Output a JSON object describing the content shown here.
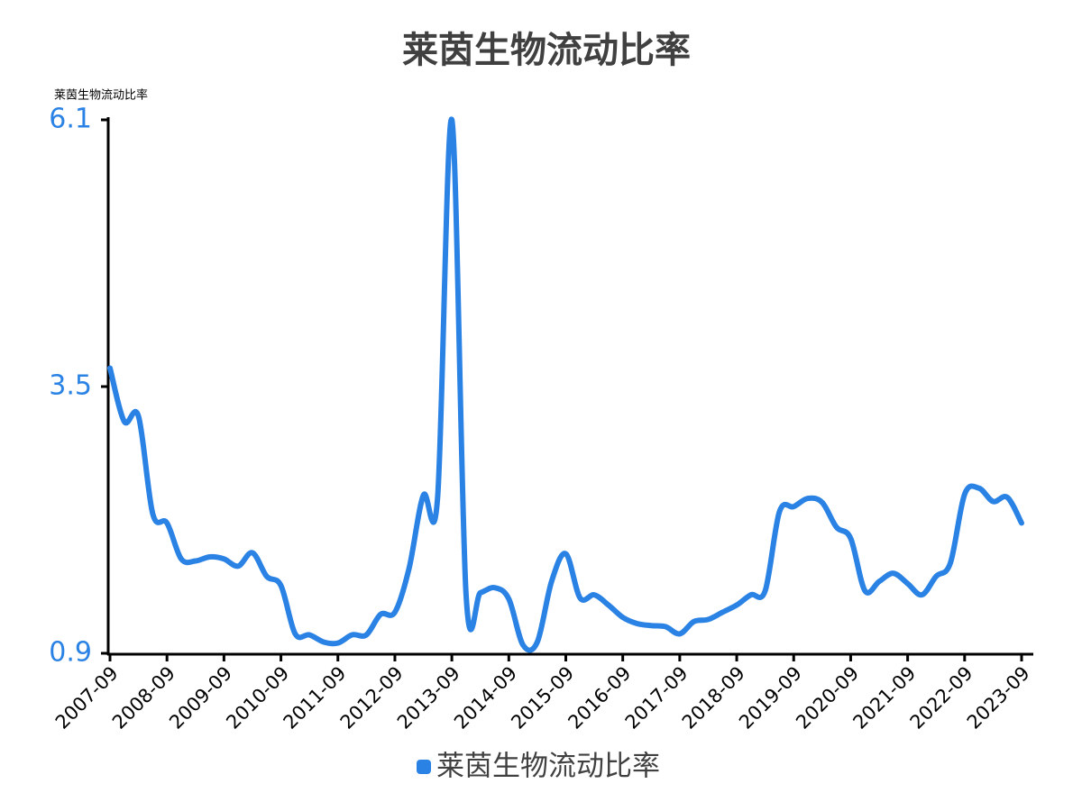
{
  "chart_data": {
    "type": "line",
    "title": "莱茵生物流动比率",
    "y_label": "莱茵生物流动比率",
    "categories": [
      "2007-09",
      null,
      null,
      null,
      "2008-09",
      null,
      null,
      null,
      "2009-09",
      null,
      null,
      null,
      "2010-09",
      null,
      null,
      null,
      "2011-09",
      null,
      null,
      null,
      "2012-09",
      null,
      null,
      null,
      "2013-09",
      null,
      null,
      null,
      "2014-09",
      null,
      null,
      null,
      "2015-09",
      null,
      null,
      null,
      "2016-09",
      null,
      null,
      null,
      "2017-09",
      null,
      null,
      null,
      "2018-09",
      null,
      null,
      null,
      "2019-09",
      null,
      null,
      null,
      "2020-09",
      null,
      null,
      null,
      "2021-09",
      null,
      null,
      null,
      "2022-09",
      null,
      null,
      null,
      "2023-09"
    ],
    "series": [
      {
        "name": "莱茵生物流动比率",
        "color": "#2a82e4",
        "values": [
          3.68,
          3.16,
          3.21,
          2.26,
          2.17,
          1.82,
          1.8,
          1.84,
          1.82,
          1.75,
          1.88,
          1.65,
          1.56,
          1.09,
          1.08,
          1.01,
          1.0,
          1.08,
          1.08,
          1.28,
          1.3,
          1.73,
          2.44,
          2.42,
          6.1,
          1.47,
          1.49,
          1.54,
          1.43,
          0.98,
          1.01,
          1.6,
          1.87,
          1.44,
          1.47,
          1.37,
          1.25,
          1.19,
          1.17,
          1.16,
          1.09,
          1.21,
          1.23,
          1.3,
          1.37,
          1.47,
          1.51,
          2.28,
          2.33,
          2.41,
          2.37,
          2.13,
          2.02,
          1.51,
          1.6,
          1.68,
          1.58,
          1.47,
          1.65,
          1.78,
          2.45,
          2.51,
          2.38,
          2.42,
          2.17
        ]
      }
    ],
    "ylim": [
      0.9,
      6.1
    ],
    "yticks": [
      0.9,
      3.5,
      6.1
    ],
    "grid": false,
    "legend": "bottom"
  }
}
